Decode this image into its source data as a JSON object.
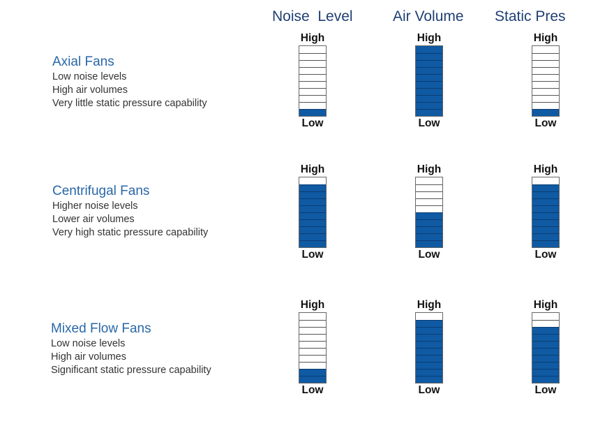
{
  "columns": {
    "noise": "Noise  Level",
    "air": "Air Volume",
    "static": "Static Pres"
  },
  "scale": {
    "high": "High",
    "low": "Low"
  },
  "colors": {
    "fill": "#0f5aa3",
    "title": "#2a67a8",
    "header": "#1f3f73"
  },
  "segments_total": 10,
  "fans": [
    {
      "name": "Axial Fans",
      "lines": [
        "Low noise levels",
        "High air volumes",
        "Very little static pressure capability"
      ],
      "levels": {
        "noise": 1,
        "air": 10,
        "static": 1
      }
    },
    {
      "name": "Centrifugal Fans",
      "lines": [
        "Higher noise levels",
        "Lower air volumes",
        "Very high static pressure capability"
      ],
      "levels": {
        "noise": 9,
        "air": 5,
        "static": 9
      }
    },
    {
      "name": "Mixed Flow Fans",
      "lines": [
        "Low noise levels",
        "High air volumes",
        "Significant static pressure capability"
      ],
      "levels": {
        "noise": 2,
        "air": 9,
        "static": 8
      }
    }
  ]
}
